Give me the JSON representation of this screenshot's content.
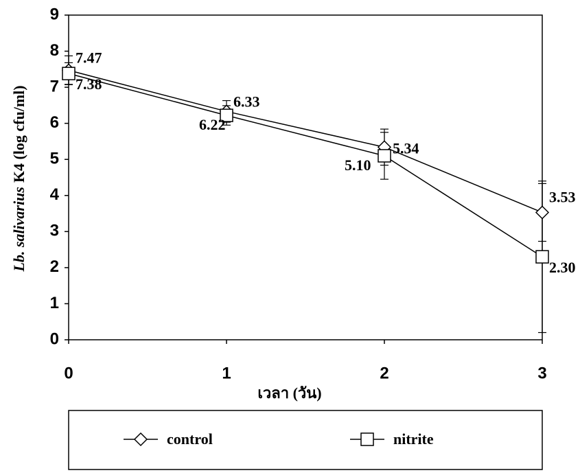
{
  "chart_data": {
    "type": "line",
    "x": [
      0,
      1,
      2,
      3
    ],
    "xlim": [
      0,
      3
    ],
    "xticks": [
      0,
      1,
      2,
      3
    ],
    "ylim": [
      0,
      9
    ],
    "yticks": [
      0,
      1,
      2,
      3,
      4,
      5,
      6,
      7,
      8,
      9
    ],
    "x_label": "เวลา (วัน)",
    "y_label": [
      "Lb. salivarius",
      "K4 (log cfu/ml)"
    ],
    "grid": false,
    "legend": "bottom",
    "series": [
      {
        "name": "control",
        "color": "#000000",
        "marker": "diamond",
        "values": [
          7.47,
          6.33,
          5.34,
          3.53
        ],
        "value_labels": [
          "7.47",
          "6.33",
          "5.34",
          "3.53"
        ],
        "errors": [
          0.4,
          0.3,
          0.5,
          0.8
        ]
      },
      {
        "name": "nitrite",
        "color": "#000000",
        "marker": "square",
        "values": [
          7.38,
          6.22,
          5.1,
          2.3
        ],
        "value_labels": [
          "7.38",
          "6.22",
          "5.10",
          "2.30"
        ],
        "errors": [
          0.3,
          0.27,
          0.65,
          2.1
        ]
      }
    ]
  }
}
